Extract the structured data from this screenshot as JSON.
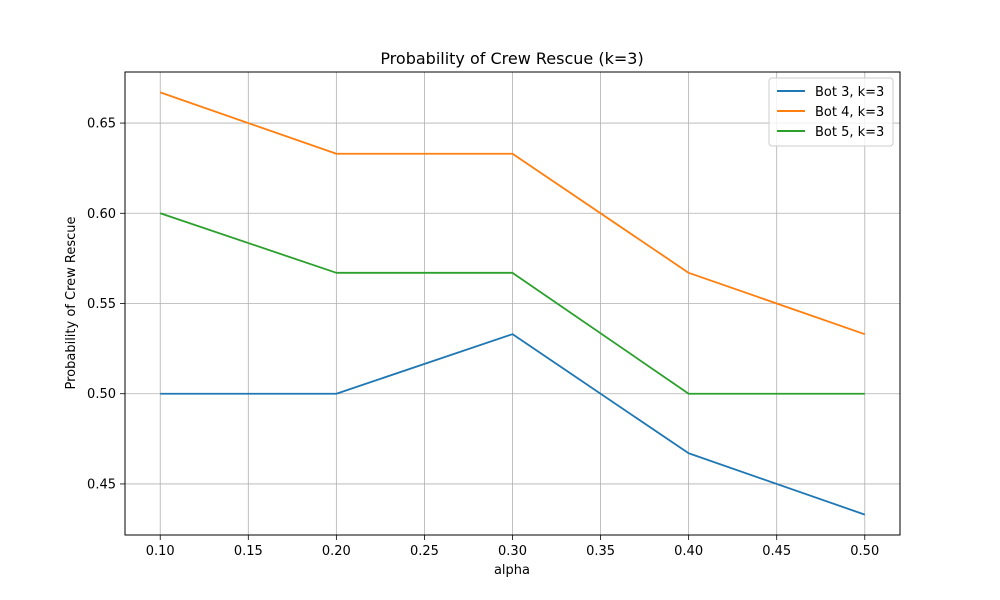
{
  "chart_data": {
    "type": "line",
    "title": "Probability of Crew Rescue (k=3)",
    "xlabel": "alpha",
    "ylabel": "Probability of Crew Rescue",
    "x": [
      0.1,
      0.2,
      0.3,
      0.4,
      0.5
    ],
    "xlim": [
      0.08,
      0.52
    ],
    "ylim": [
      0.4217,
      0.6783
    ],
    "xticks": [
      0.1,
      0.15,
      0.2,
      0.25,
      0.3,
      0.35,
      0.4,
      0.45,
      0.5
    ],
    "xtick_labels": [
      "0.10",
      "0.15",
      "0.20",
      "0.25",
      "0.30",
      "0.35",
      "0.40",
      "0.45",
      "0.50"
    ],
    "yticks": [
      0.45,
      0.5,
      0.55,
      0.6,
      0.65
    ],
    "ytick_labels": [
      "0.45",
      "0.50",
      "0.55",
      "0.60",
      "0.65"
    ],
    "grid": true,
    "legend_position": "top-right",
    "series": [
      {
        "name": "Bot 3, k=3",
        "color": "#1f77b4",
        "values": [
          0.5,
          0.5,
          0.533,
          0.467,
          0.433
        ]
      },
      {
        "name": "Bot 4, k=3",
        "color": "#ff7f0e",
        "values": [
          0.667,
          0.633,
          0.633,
          0.567,
          0.533
        ]
      },
      {
        "name": "Bot 5, k=3",
        "color": "#2ca02c",
        "values": [
          0.6,
          0.567,
          0.567,
          0.5,
          0.5
        ]
      }
    ]
  }
}
